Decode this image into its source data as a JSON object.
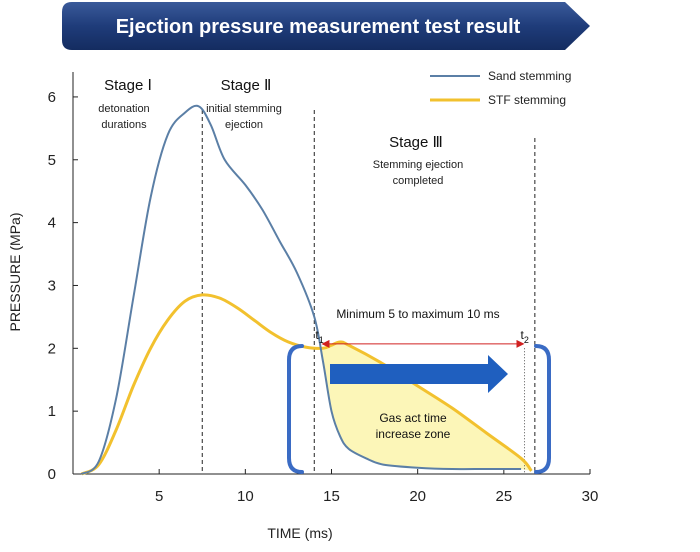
{
  "banner": {
    "title": "Ejection pressure measurement test result"
  },
  "chart_data": {
    "type": "line",
    "title": "Ejection pressure measurement test result",
    "xlabel": "TIME (ms)",
    "ylabel": "PRESSURE (MPa)",
    "xlim": [
      0,
      30
    ],
    "ylim": [
      0,
      6.5
    ],
    "xticks": [
      5,
      10,
      15,
      20,
      25,
      30
    ],
    "yticks": [
      0,
      1,
      2,
      3,
      4,
      5,
      6
    ],
    "grid": false,
    "legend_position": "top-right",
    "series": [
      {
        "name": "Sand stemming",
        "color": "#5b7fa6",
        "x": [
          0.5,
          1.5,
          2.5,
          3.5,
          4.5,
          5.5,
          6.5,
          7.3,
          8.0,
          8.8,
          10.0,
          11.0,
          12.0,
          13.0,
          14.0,
          14.5,
          15.0,
          15.5,
          16.0,
          17.0,
          18.0,
          20.0,
          22.0,
          24.0,
          26.0
        ],
        "y": [
          0.0,
          0.2,
          1.2,
          2.8,
          4.4,
          5.4,
          5.75,
          5.85,
          5.55,
          5.0,
          4.6,
          4.2,
          3.7,
          3.2,
          2.5,
          1.8,
          1.0,
          0.6,
          0.4,
          0.25,
          0.15,
          0.1,
          0.08,
          0.08,
          0.08
        ]
      },
      {
        "name": "STF stemming",
        "color": "#f2c12e",
        "x": [
          0.5,
          1.5,
          2.5,
          3.5,
          4.5,
          5.5,
          6.5,
          7.5,
          8.5,
          9.5,
          10.5,
          11.5,
          12.5,
          13.5,
          14.5,
          15.0,
          15.5,
          16.0,
          18.0,
          20.0,
          22.0,
          24.0,
          26.0,
          26.6
        ],
        "y": [
          0.0,
          0.15,
          0.7,
          1.4,
          2.0,
          2.45,
          2.75,
          2.85,
          2.8,
          2.65,
          2.45,
          2.25,
          2.1,
          2.02,
          2.0,
          2.05,
          2.1,
          2.05,
          1.75,
          1.4,
          1.05,
          0.65,
          0.25,
          0.05
        ]
      }
    ],
    "stage_boundaries": [
      7.5,
      14.0,
      26.8
    ],
    "markers": {
      "t1": {
        "label": "t",
        "subscript": "1",
        "x": 14.3
      },
      "t2": {
        "label": "t",
        "subscript": "2",
        "x": 26.2
      }
    },
    "annotations": {
      "stage1": {
        "title": "Stage Ⅰ",
        "desc": [
          "detonation",
          "durations"
        ]
      },
      "stage2": {
        "title": "Stage Ⅱ",
        "desc": [
          "initial stemming",
          "ejection"
        ]
      },
      "stage3": {
        "title": "Stage Ⅲ",
        "desc": [
          "Stemming ejection",
          "completed"
        ]
      },
      "range": "Minimum 5 to maximum 10 ms",
      "zone": [
        "Gas act time",
        "increase zone"
      ]
    }
  }
}
